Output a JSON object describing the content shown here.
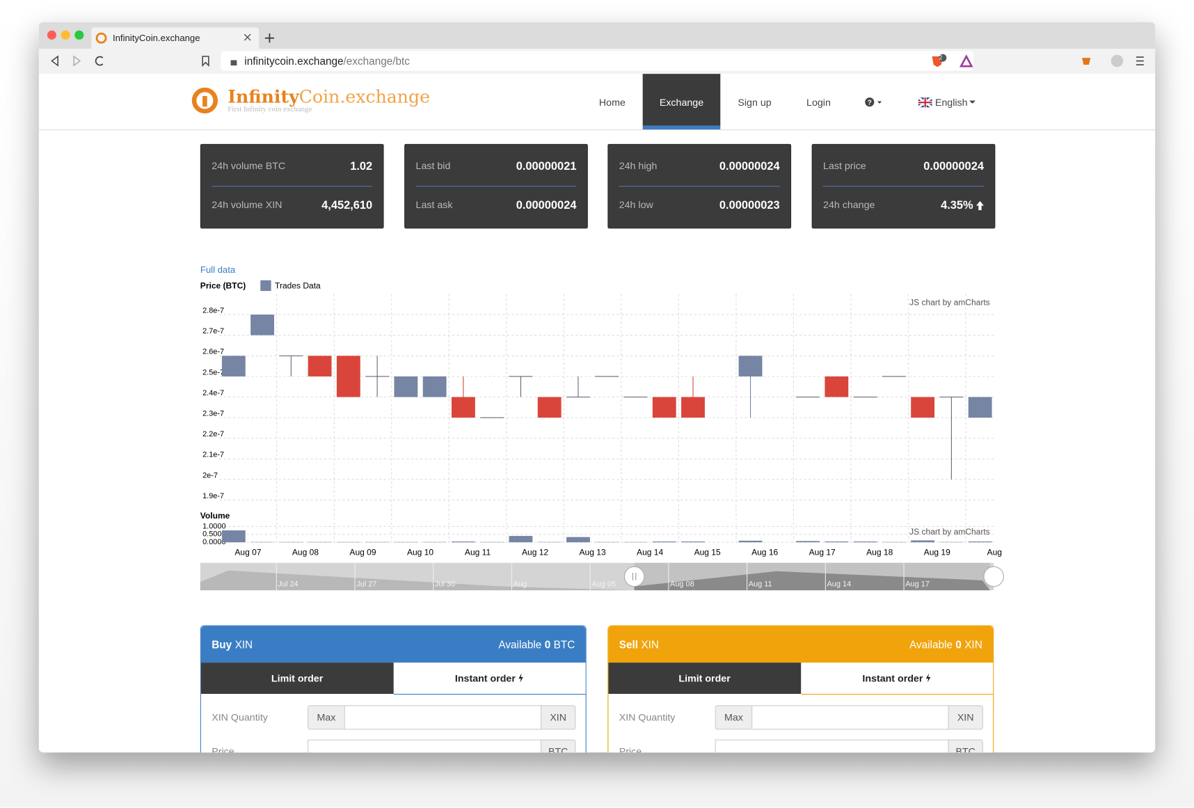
{
  "browser": {
    "tab_title": "InfinityCoin.exchange",
    "url_host": "infinitycoin.exchange",
    "url_path": "/exchange/btc",
    "badge": "2"
  },
  "header": {
    "logo_bold": "Infinity",
    "logo_rest": "Coin.exchange",
    "tagline": "First Infinity coin exchange",
    "nav": [
      "Home",
      "Exchange",
      "Sign up",
      "Login"
    ],
    "active_nav": 1,
    "help": "?",
    "language": "English"
  },
  "stats": [
    {
      "rows": [
        {
          "label": "24h volume BTC",
          "value": "1.02"
        },
        {
          "label": "24h volume XIN",
          "value": "4,452,610"
        }
      ]
    },
    {
      "rows": [
        {
          "label": "Last bid",
          "value": "0.00000021"
        },
        {
          "label": "Last ask",
          "value": "0.00000024"
        }
      ]
    },
    {
      "rows": [
        {
          "label": "24h high",
          "value": "0.00000024"
        },
        {
          "label": "24h low",
          "value": "0.00000023"
        }
      ]
    },
    {
      "rows": [
        {
          "label": "Last price",
          "value": "0.00000024"
        },
        {
          "label": "24h change",
          "value": "4.35%",
          "trend": "up"
        }
      ]
    }
  ],
  "chart_data": {
    "type": "candlestick",
    "link": "Full data",
    "y_label": "Price (BTC)",
    "credit": "JS chart by amCharts",
    "categories": [
      null,
      "Aug 07",
      null,
      "Aug 08",
      null,
      "Aug 09",
      null,
      "Aug 10",
      null,
      "Aug 11",
      null,
      "Aug 12",
      null,
      "Aug 13",
      null,
      "Aug 14",
      null,
      "Aug 15",
      null,
      "Aug 16",
      null,
      "Aug 17",
      null,
      "Aug 18",
      null,
      "Aug 19",
      null,
      "Aug"
    ],
    "series": [
      {
        "name": "Trades Data",
        "color": "#7585a3",
        "down_color": "#d9453b",
        "open": [
          2.5e-07,
          2.7e-07,
          2.6e-07,
          2.6e-07,
          2.6e-07,
          2.5e-07,
          2.4e-07,
          2.4e-07,
          2.4e-07,
          2.3e-07,
          2.5e-07,
          2.4e-07,
          2.4e-07,
          2.5e-07,
          2.4e-07,
          2.4e-07,
          2.4e-07,
          null,
          2.5e-07,
          null,
          2.4e-07,
          2.5e-07,
          2.4e-07,
          2.5e-07,
          2.4e-07,
          2.4e-07,
          2.3e-07,
          null
        ],
        "high": [
          2.6e-07,
          2.8e-07,
          2.6e-07,
          2.6e-07,
          2.6e-07,
          2.6e-07,
          2.5e-07,
          2.5e-07,
          2.5e-07,
          2.3e-07,
          2.5e-07,
          2.4e-07,
          2.5e-07,
          2.5e-07,
          2.4e-07,
          2.4e-07,
          2.5e-07,
          null,
          2.6e-07,
          null,
          2.4e-07,
          2.5e-07,
          2.4e-07,
          2.5e-07,
          2.4e-07,
          2.4e-07,
          2.4e-07,
          null
        ],
        "low": [
          2.5e-07,
          2.7e-07,
          2.5e-07,
          2.5e-07,
          2.4e-07,
          2.4e-07,
          2.4e-07,
          2.4e-07,
          2.3e-07,
          2.3e-07,
          2.4e-07,
          2.3e-07,
          2.4e-07,
          2.5e-07,
          2.4e-07,
          2.3e-07,
          2.3e-07,
          null,
          2.3e-07,
          null,
          2.4e-07,
          2.4e-07,
          2.4e-07,
          2.5e-07,
          2.3e-07,
          2e-07,
          2.3e-07,
          null
        ],
        "close": [
          2.6e-07,
          2.8e-07,
          2.6e-07,
          2.5e-07,
          2.4e-07,
          2.5e-07,
          2.5e-07,
          2.5e-07,
          2.3e-07,
          2.3e-07,
          2.5e-07,
          2.3e-07,
          2.4e-07,
          2.5e-07,
          2.4e-07,
          2.3e-07,
          2.3e-07,
          null,
          2.6e-07,
          null,
          2.4e-07,
          2.4e-07,
          2.4e-07,
          2.5e-07,
          2.3e-07,
          2.4e-07,
          2.4e-07,
          null
        ]
      }
    ],
    "ylim": [
      1.88e-07,
      2.9e-07
    ],
    "yticks": [
      2.8e-07,
      2.7e-07,
      2.6e-07,
      2.5e-07,
      2.4e-07,
      2.3e-07,
      2.2e-07,
      2.1e-07,
      2e-07,
      1.9e-07
    ],
    "grid": true,
    "volume": {
      "label": "Volume",
      "color": "#7585a3",
      "values": [
        0.75,
        0.02,
        0.02,
        0.02,
        0.02,
        0.02,
        0.02,
        0.02,
        0.05,
        0.02,
        0.4,
        0.02,
        0.33,
        0.02,
        0.02,
        0.05,
        0.05,
        null,
        0.1,
        null,
        0.08,
        0.05,
        0.05,
        0.02,
        0.12,
        0.02,
        0.05,
        null
      ],
      "ylim": [
        0,
        1.2
      ],
      "yticks": [
        {
          "value": 1,
          "label": "1.0000"
        },
        {
          "value": 0.5,
          "label": "0.5000"
        },
        {
          "value": 0,
          "label": "0.0000"
        }
      ]
    },
    "navigator_labels": [
      "Jul 24",
      "Jul 27",
      "Jul 30",
      "Aug",
      "Aug 05",
      "Aug 08",
      "Aug 11",
      "Aug 14",
      "Aug 17"
    ]
  },
  "orders": [
    {
      "side": "Buy",
      "asset": "XIN",
      "available_label": "Available",
      "available_amount": "0",
      "available_unit": "BTC",
      "color": "#3a7dc4",
      "tabs": [
        "Limit order",
        "Instant order"
      ],
      "fields": [
        {
          "label": "XIN Quantity",
          "prefix": "Max",
          "unit": "XIN"
        },
        {
          "label": "Price",
          "unit": "BTC"
        }
      ]
    },
    {
      "side": "Sell",
      "asset": "XIN",
      "available_label": "Available",
      "available_amount": "0",
      "available_unit": "XIN",
      "color": "#f0a30a",
      "tabs": [
        "Limit order",
        "Instant order"
      ],
      "fields": [
        {
          "label": "XIN Quantity",
          "prefix": "Max",
          "unit": "XIN"
        },
        {
          "label": "Price",
          "unit": "BTC"
        }
      ]
    }
  ]
}
